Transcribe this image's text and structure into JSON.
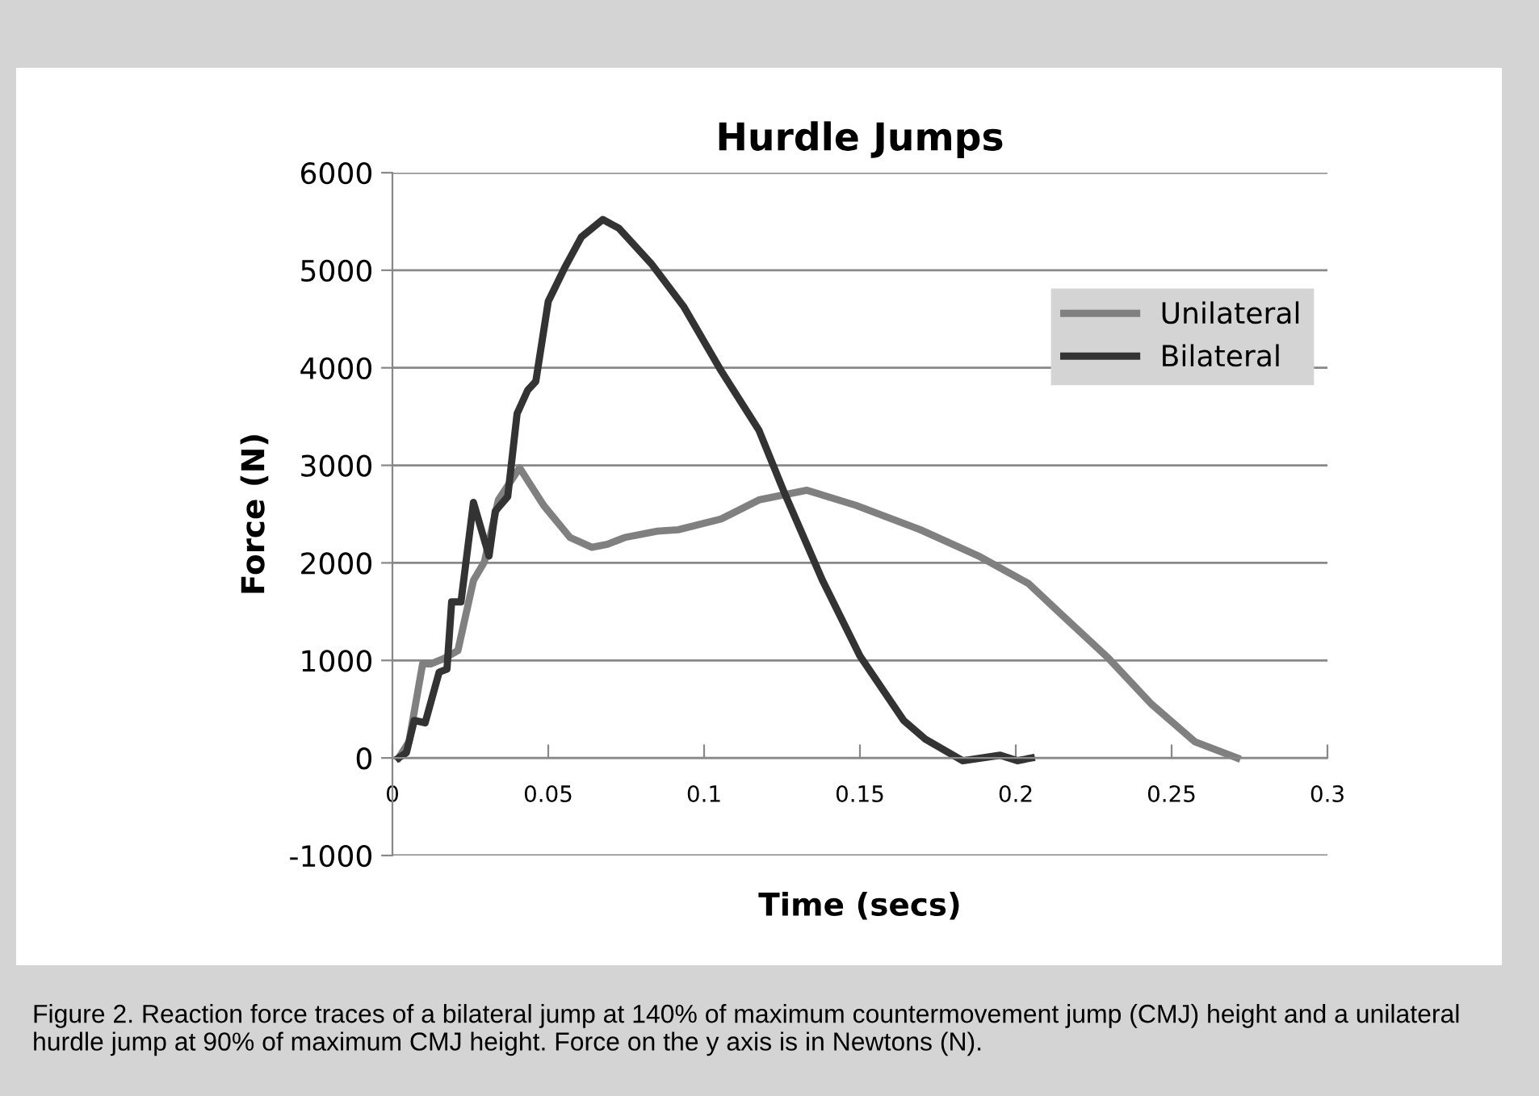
{
  "chart_data": {
    "type": "line",
    "title": "Hurdle Jumps",
    "xlabel": "Time (secs)",
    "ylabel": "Force (N)",
    "xlim": [
      0,
      0.3
    ],
    "xticks": [
      0,
      0.05,
      0.1,
      0.15,
      0.2,
      0.25,
      0.3
    ],
    "ylim": [
      -1000,
      6000
    ],
    "yticks": [
      -1000,
      0,
      1000,
      2000,
      3000,
      4000,
      5000,
      6000
    ],
    "grid": "y",
    "legend": "top right",
    "marker": "none",
    "line_style": "solid",
    "series": [
      {
        "name": "Unilateral",
        "color": "#808080",
        "x": [
          0.002,
          0.0053,
          0.0097,
          0.0123,
          0.0166,
          0.021,
          0.026,
          0.0295,
          0.034,
          0.0408,
          0.0485,
          0.057,
          0.064,
          0.069,
          0.0745,
          0.085,
          0.0917,
          0.1055,
          0.1176,
          0.133,
          0.1487,
          0.1694,
          0.1884,
          0.204,
          0.216,
          0.2298,
          0.2436,
          0.2575,
          0.271
        ],
        "values": [
          0,
          165,
          965,
          965,
          1020,
          1100,
          1820,
          2010,
          2645,
          2975,
          2590,
          2260,
          2160,
          2190,
          2260,
          2325,
          2340,
          2450,
          2645,
          2745,
          2590,
          2340,
          2065,
          1790,
          1430,
          1020,
          550,
          165,
          0
        ]
      },
      {
        "name": "Bilateral",
        "color": "#333333",
        "x": [
          0.002,
          0.0045,
          0.007,
          0.0105,
          0.015,
          0.0175,
          0.019,
          0.022,
          0.026,
          0.031,
          0.033,
          0.037,
          0.04,
          0.0434,
          0.046,
          0.05,
          0.0555,
          0.0606,
          0.0675,
          0.0727,
          0.083,
          0.0934,
          0.1055,
          0.1176,
          0.126,
          0.138,
          0.15,
          0.164,
          0.171,
          0.183,
          0.195,
          0.2005,
          0.205
        ],
        "values": [
          0,
          55,
          385,
          360,
          880,
          910,
          1600,
          1600,
          2620,
          2070,
          2530,
          2680,
          3530,
          3770,
          3860,
          4680,
          5040,
          5340,
          5520,
          5430,
          5070,
          4630,
          3967,
          3360,
          2700,
          1820,
          1046,
          385,
          193,
          -28,
          28,
          -28,
          0
        ]
      }
    ],
    "annotations": [
      "Figure 2. Reaction force traces of a bilateral jump at 140% of maximum countermovement jump (CMJ) height and a unilateral hurdle jump at 90% of maximum CMJ height. Force on the y axis is in Newtons (N)."
    ]
  }
}
